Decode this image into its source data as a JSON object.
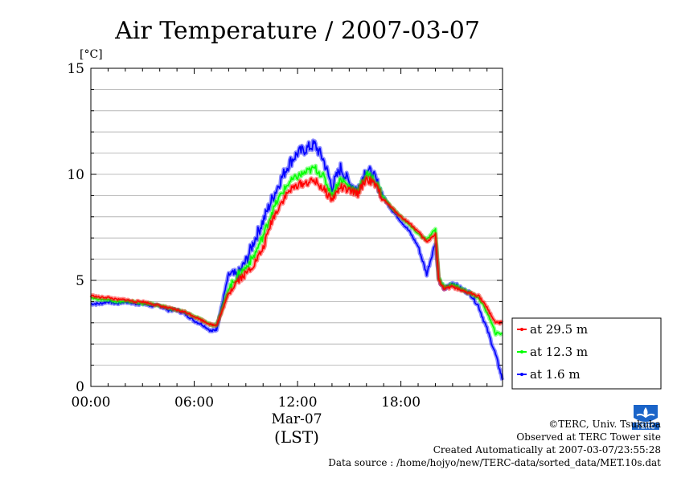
{
  "chart_data": {
    "type": "line",
    "title": "Air Temperature / 2007-03-07",
    "ylabel": "[°C]",
    "xlabel": "(LST)",
    "date_label": "Mar-07",
    "x_unit": "hour",
    "xlim": [
      0,
      23.9
    ],
    "ylim": [
      0,
      15
    ],
    "yticks": [
      0,
      5,
      10,
      15
    ],
    "xticks": [
      {
        "value": 0,
        "label": "00:00"
      },
      {
        "value": 6,
        "label": "06:00"
      },
      {
        "value": 12,
        "label": "12:00"
      },
      {
        "value": 18,
        "label": "18:00"
      }
    ],
    "grid": true,
    "legend_position": "right",
    "series": [
      {
        "name": "at 29.5 m",
        "color": "#ff0000",
        "x": [
          0,
          0.5,
          1,
          1.5,
          2,
          2.5,
          3,
          3.5,
          4,
          4.5,
          5,
          5.5,
          6,
          6.5,
          7,
          7.3,
          7.6,
          8,
          8.5,
          9,
          9.5,
          10,
          10.5,
          11,
          11.5,
          12,
          12.5,
          13,
          13.5,
          14,
          14.5,
          15,
          15.5,
          16,
          16.5,
          17,
          17.5,
          18,
          18.5,
          19,
          19.5,
          20,
          20.2,
          20.5,
          21,
          21.5,
          22,
          22.5,
          23,
          23.5,
          23.9
        ],
        "y": [
          4.3,
          4.2,
          4.2,
          4.1,
          4.1,
          4.0,
          4.0,
          3.9,
          3.8,
          3.7,
          3.6,
          3.5,
          3.3,
          3.1,
          2.9,
          2.9,
          3.5,
          4.4,
          5.0,
          5.3,
          5.8,
          6.5,
          7.8,
          8.6,
          9.2,
          9.5,
          9.6,
          9.7,
          9.3,
          8.8,
          9.4,
          9.2,
          9.1,
          9.8,
          9.5,
          8.8,
          8.4,
          8.0,
          7.7,
          7.3,
          6.8,
          7.2,
          5.0,
          4.6,
          4.7,
          4.5,
          4.4,
          4.3,
          3.7,
          3.0,
          3.0
        ]
      },
      {
        "name": "at 12.3 m",
        "color": "#00ff00",
        "x": [
          0,
          0.5,
          1,
          1.5,
          2,
          2.5,
          3,
          3.5,
          4,
          4.5,
          5,
          5.5,
          6,
          6.5,
          7,
          7.3,
          7.6,
          8,
          8.5,
          9,
          9.5,
          10,
          10.5,
          11,
          11.5,
          12,
          12.5,
          13,
          13.5,
          14,
          14.5,
          15,
          15.5,
          16,
          16.5,
          17,
          17.5,
          18,
          18.5,
          19,
          19.5,
          20,
          20.2,
          20.5,
          21,
          21.5,
          22,
          22.5,
          23,
          23.5,
          23.9
        ],
        "y": [
          4.2,
          4.1,
          4.1,
          4.0,
          4.0,
          4.0,
          3.9,
          3.9,
          3.8,
          3.7,
          3.6,
          3.5,
          3.3,
          3.1,
          2.9,
          2.9,
          3.6,
          4.6,
          5.2,
          5.6,
          6.2,
          7.1,
          8.2,
          9.0,
          9.6,
          9.9,
          10.1,
          10.3,
          9.9,
          9.0,
          9.8,
          9.4,
          9.2,
          10.0,
          9.7,
          8.9,
          8.4,
          8.0,
          7.6,
          7.2,
          6.9,
          7.4,
          5.1,
          4.7,
          4.8,
          4.6,
          4.4,
          4.2,
          3.5,
          2.5,
          2.5
        ]
      },
      {
        "name": "at 1.6 m",
        "color": "#0000ff",
        "x": [
          0,
          0.5,
          1,
          1.5,
          2,
          2.5,
          3,
          3.5,
          4,
          4.5,
          5,
          5.5,
          6,
          6.5,
          7,
          7.3,
          7.6,
          8,
          8.5,
          9,
          9.5,
          10,
          10.5,
          11,
          11.5,
          12,
          12.5,
          13,
          13.5,
          14,
          14.5,
          15,
          15.5,
          16,
          16.5,
          17,
          17.5,
          18,
          18.5,
          19,
          19.5,
          20,
          20.2,
          20.5,
          21,
          21.5,
          22,
          22.5,
          23,
          23.5,
          23.9
        ],
        "y": [
          3.9,
          3.9,
          4.0,
          3.9,
          4.0,
          3.9,
          3.9,
          3.8,
          3.8,
          3.6,
          3.6,
          3.4,
          3.1,
          2.9,
          2.6,
          2.7,
          3.8,
          5.3,
          5.2,
          5.9,
          6.9,
          7.8,
          8.8,
          9.7,
          10.5,
          11.0,
          11.2,
          11.4,
          10.7,
          9.4,
          10.3,
          9.6,
          9.3,
          10.3,
          9.8,
          8.9,
          8.3,
          7.8,
          7.3,
          6.6,
          5.3,
          6.8,
          5.0,
          4.6,
          4.9,
          4.6,
          4.4,
          3.8,
          2.7,
          1.5,
          0.3
        ]
      }
    ]
  },
  "footer": {
    "copyright": "©TERC, Univ. Tsukuba",
    "observed": "Observed at TERC Tower site",
    "created": "Created Automatically at 2007-03-07/23:55:28",
    "source": "Data source : /home/hojyo/new/TERC-data/sorted_data/MET.10s.dat"
  },
  "logo": {
    "icon": "terc-logo-icon",
    "text": "TERC",
    "color": "#1a64c8"
  }
}
